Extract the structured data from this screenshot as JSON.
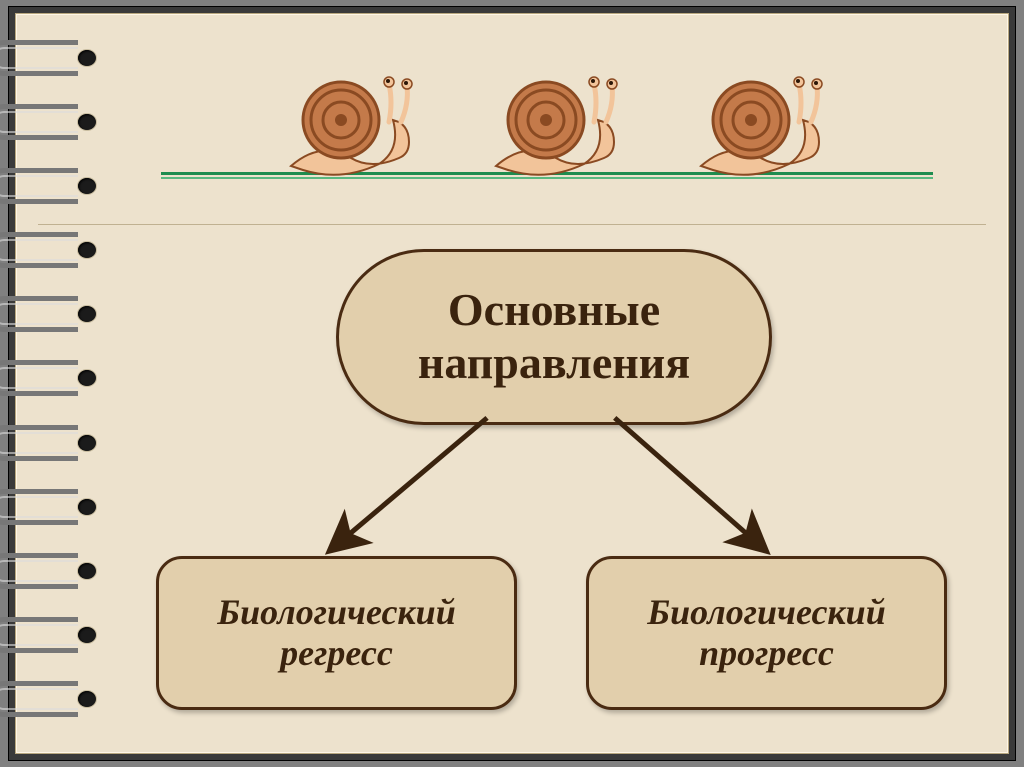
{
  "diagram": {
    "type": "tree",
    "root": {
      "label": "Основные\nнаправления"
    },
    "children": [
      {
        "label": "Биологический\nрегресс"
      },
      {
        "label": "Биологический\nпрогресс"
      }
    ],
    "box_fill": "#e2cfac",
    "box_border": "#4a2b12",
    "box_border_width": 3,
    "root_fontsize": 46,
    "child_fontsize": 36,
    "arrow_color": "#3a230e",
    "arrow_width": 5
  },
  "decoration": {
    "snail_count": 3,
    "snail_shell_color": "#c47a4a",
    "snail_shell_dark": "#8a4a22",
    "snail_body_color": "#f2c49a",
    "ground_color_primary": "#1e8c4f",
    "ground_color_secondary": "#59b880"
  },
  "page": {
    "paper_color": "#ede2cd",
    "frame_color": "#3a3a3a",
    "rule_color": "#c0b191",
    "ring_count": 11,
    "ring_metal": "#777777"
  }
}
